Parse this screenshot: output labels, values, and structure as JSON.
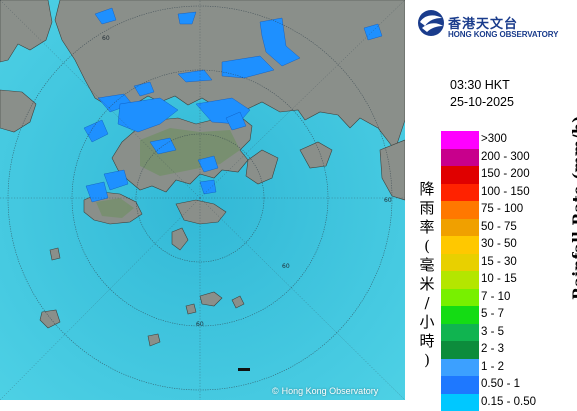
{
  "organization": {
    "name_zh": "香港天文台",
    "name_en": "HONG KONG OBSERVATORY"
  },
  "timestamp": {
    "time": "03:30 HKT",
    "date": "25-10-2025"
  },
  "map": {
    "range_ring_label": "60",
    "copyright": "Hong Kong Observatory",
    "colors": {
      "sea": "#3bc6df",
      "land": "#8a8f8a",
      "rain": "#1e90ff"
    }
  },
  "legend": {
    "label_zh": "降雨率(毫米/小時)",
    "label_zh_chars": [
      "降",
      "雨",
      "率",
      "(",
      "毫",
      "米",
      "/",
      "小",
      "時",
      ")"
    ],
    "label_en": "Rainfall Rate (mm/h)",
    "items": [
      {
        "range": ">300",
        "color": "#ff00ff"
      },
      {
        "range": "200 - 300",
        "color": "#c8008c"
      },
      {
        "range": "150 - 200",
        "color": "#e00000"
      },
      {
        "range": "100 - 150",
        "color": "#ff2200"
      },
      {
        "range": "75 - 100",
        "color": "#ff7800"
      },
      {
        "range": "50 - 75",
        "color": "#f0a000"
      },
      {
        "range": "30 - 50",
        "color": "#ffc800"
      },
      {
        "range": "15 - 30",
        "color": "#e8d000"
      },
      {
        "range": "10 - 15",
        "color": "#b4e600"
      },
      {
        "range": "7 - 10",
        "color": "#78f000"
      },
      {
        "range": "5 - 7",
        "color": "#14dc14"
      },
      {
        "range": "3 - 5",
        "color": "#10b450"
      },
      {
        "range": "2 - 3",
        "color": "#0c8c3c"
      },
      {
        "range": "1 - 2",
        "color": "#3ca0ff"
      },
      {
        "range": "0.50 - 1",
        "color": "#1e78ff"
      },
      {
        "range": "0.15 - 0.50",
        "color": "#00c8ff"
      }
    ]
  }
}
